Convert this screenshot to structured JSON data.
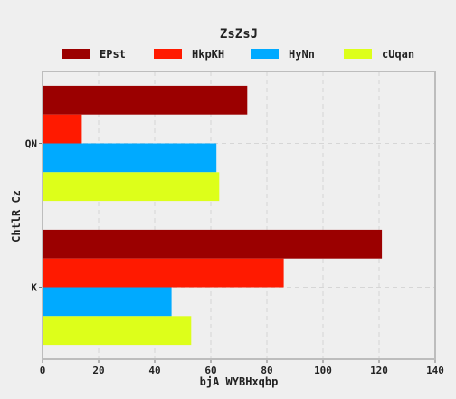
{
  "chart_data": {
    "type": "bar",
    "orientation": "horizontal",
    "title": "ZsZsJ",
    "xlabel": "bjA WYBHxqbp",
    "ylabel": "ChtlR Cz",
    "categories": [
      "QN",
      "K"
    ],
    "xlim": [
      0,
      140
    ],
    "xticks": [
      0,
      20,
      40,
      60,
      80,
      100,
      120,
      140
    ],
    "grid": true,
    "legend_position": "top",
    "series": [
      {
        "name": "EPst",
        "color": "#9b0000",
        "values": [
          73,
          121
        ]
      },
      {
        "name": "HkpKH",
        "color": "#ff1a00",
        "values": [
          14,
          86
        ]
      },
      {
        "name": "HyNn",
        "color": "#00aaff",
        "values": [
          62,
          46
        ]
      },
      {
        "name": "cUqan",
        "color": "#ddff1a",
        "values": [
          63,
          53
        ]
      }
    ]
  }
}
